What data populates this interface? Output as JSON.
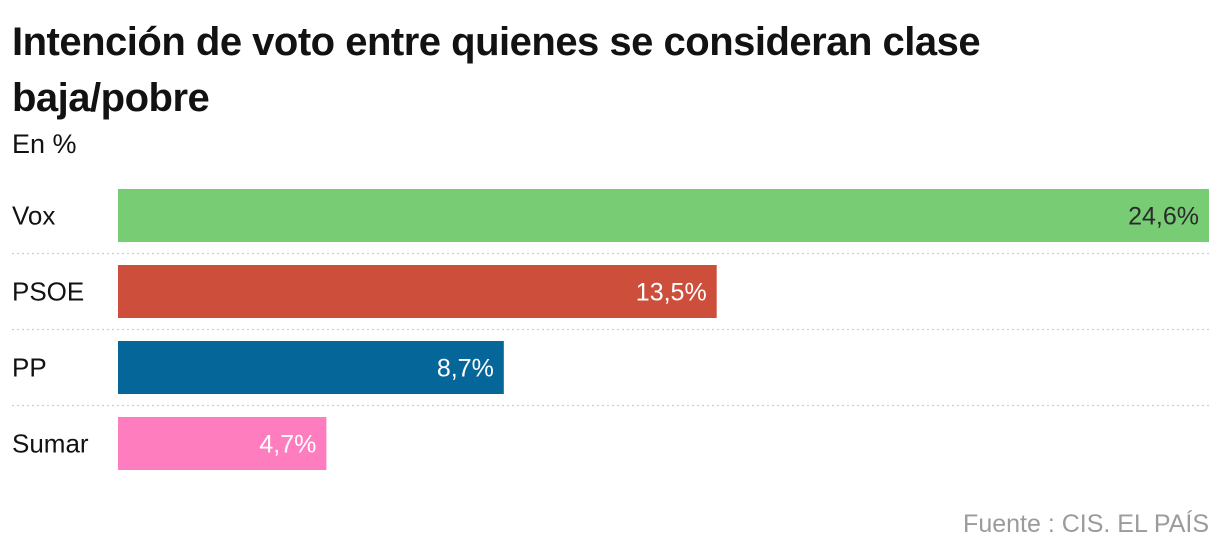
{
  "header": {
    "title": "Intención de voto entre quienes se consideran clase baja/pobre",
    "subtitle": "En %"
  },
  "footer": {
    "source": "Fuente : CIS. EL PAÍS"
  },
  "chart_data": {
    "type": "bar",
    "orientation": "horizontal",
    "title": "Intención de voto entre quienes se consideran clase baja/pobre",
    "subtitle": "En %",
    "categories": [
      "Vox",
      "PSOE",
      "PP",
      "Sumar"
    ],
    "values": [
      24.6,
      13.5,
      8.7,
      4.7
    ],
    "value_labels": [
      "24,6%",
      "13,5%",
      "8,7%",
      "4,7%"
    ],
    "colors": [
      "#78cd74",
      "#cc4e3b",
      "#05669a",
      "#fd7dbf"
    ],
    "label_colors": [
      "#2b2b2b",
      "#ffffff",
      "#ffffff",
      "#ffffff"
    ],
    "xlim": [
      0,
      24.6
    ],
    "xlabel": "",
    "ylabel": "",
    "grid": false,
    "source": "Fuente : CIS. EL PAÍS"
  }
}
